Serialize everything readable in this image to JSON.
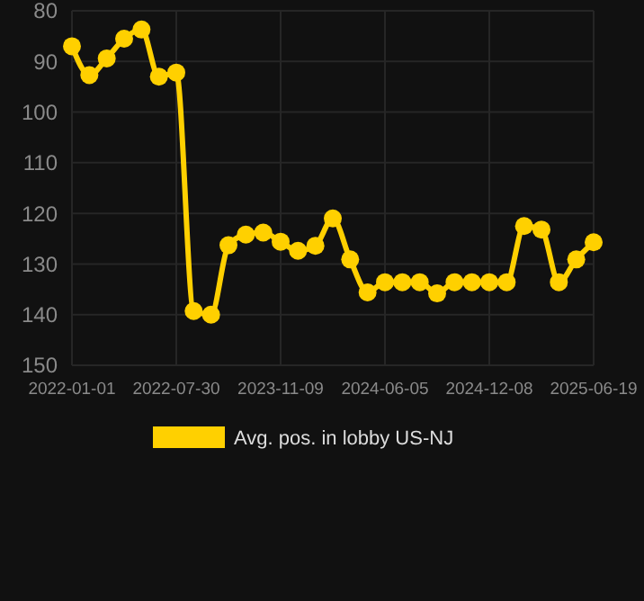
{
  "chart_data": {
    "type": "line",
    "categories": [
      "2022-01-01",
      null,
      null,
      null,
      null,
      null,
      "2022-07-30",
      null,
      null,
      null,
      null,
      null,
      "2023-11-09",
      null,
      null,
      null,
      null,
      null,
      "2024-06-05",
      null,
      null,
      null,
      null,
      null,
      "2024-12-08",
      null,
      null,
      null,
      null,
      null,
      "2025-06-19"
    ],
    "series": [
      {
        "name": "Avg. pos. in lobby US-NJ",
        "color": "#ffd000",
        "values": [
          87,
          92.7,
          89.4,
          85.5,
          83.7,
          93,
          92.2,
          139.3,
          140,
          126.3,
          124.2,
          123.8,
          125.6,
          127.4,
          126.4,
          121,
          129.1,
          135.6,
          133.6,
          133.6,
          133.6,
          135.8,
          133.6,
          133.6,
          133.6,
          133.6,
          122.5,
          123.2,
          133.6,
          129.1,
          125.7
        ]
      }
    ],
    "ylim": [
      150,
      80
    ],
    "yticks": [
      80,
      90,
      100,
      110,
      120,
      130,
      140,
      150
    ],
    "grid": true,
    "legend": "bottom",
    "marker": "circle",
    "line_style": "solid"
  }
}
